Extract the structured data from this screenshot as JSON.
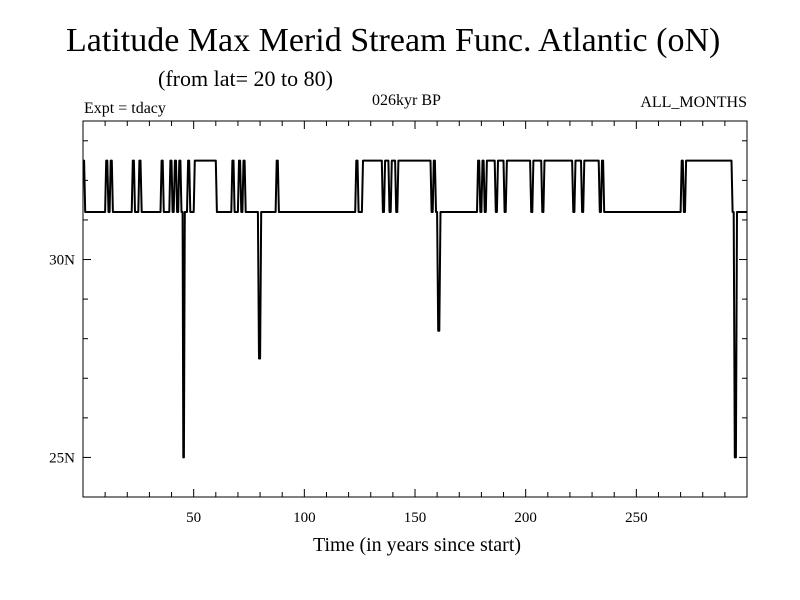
{
  "chart_data": {
    "type": "line",
    "title": "Latitude Max Merid Stream Func. Atlantic (oN)",
    "subtitle": "(from lat= 20 to 80)",
    "experiment": "Expt = tdacy",
    "period": "026kyr BP",
    "months": "ALL_MONTHS",
    "xlabel": "Time (in years since start)",
    "ylabel": "",
    "xlim": [
      0,
      300
    ],
    "ylim": [
      24,
      33.5
    ],
    "x_ticks": [
      50,
      100,
      150,
      200,
      250
    ],
    "x_tick_labels": [
      "50",
      "100",
      "150",
      "200",
      "250"
    ],
    "x_minor_step": 10,
    "y_ticks": [
      25,
      30
    ],
    "y_tick_labels": [
      "25N",
      "30N"
    ],
    "y_minor_step": 1,
    "grid": false,
    "series": [
      {
        "x": [
          0,
          0.5,
          1,
          1.5,
          10,
          10.5,
          11,
          11.5,
          12,
          12.5,
          13,
          13.5,
          22,
          22.5,
          23,
          23.5,
          25,
          25.5,
          26,
          26.5,
          35,
          35.5,
          36,
          36.5,
          39,
          39.5,
          40,
          40.5,
          41,
          41.5,
          42,
          42.5,
          43,
          43.5,
          44,
          44.5,
          45,
          45.3,
          45.6,
          46,
          46.4,
          46.8,
          47,
          47.5,
          48,
          48.5,
          50,
          50.5,
          60,
          60.5,
          62,
          62.5,
          67,
          67.5,
          68,
          68.5,
          70,
          70.5,
          71,
          71.5,
          72,
          72.5,
          73,
          73.5,
          78,
          78.5,
          79,
          79.5,
          80,
          80.5,
          81,
          81.5,
          82,
          82.5,
          87,
          87.5,
          88,
          88.5,
          123,
          123.5,
          124,
          124.5,
          126,
          126.5,
          135,
          135.5,
          136,
          136.5,
          138,
          138.5,
          139,
          139.5,
          141,
          141.5,
          142,
          142.5,
          157,
          157.5,
          158,
          158.5,
          159,
          159.5,
          160,
          160.5,
          161,
          161.5,
          177,
          177.5,
          178,
          178.5,
          179,
          179.5,
          180,
          180.5,
          181,
          181.5,
          182,
          182.5,
          186,
          186.5,
          187,
          187.5,
          190,
          190.5,
          191,
          191.5,
          202,
          202.5,
          203,
          203.5,
          207,
          207.5,
          208,
          208.5,
          221,
          221.5,
          222,
          222.5,
          225,
          225.5,
          226,
          226.5,
          233,
          233.5,
          234,
          234.5,
          235,
          235.5,
          270,
          270.5,
          271,
          271.5,
          272,
          272.5,
          293,
          293.5,
          294,
          294.5,
          295,
          295.5,
          296,
          296.5,
          300
        ],
        "y": [
          32.5,
          32.5,
          31.2,
          31.2,
          31.2,
          32.5,
          32.5,
          31.2,
          31.2,
          32.5,
          32.5,
          31.2,
          31.2,
          32.5,
          32.5,
          31.2,
          31.2,
          32.5,
          32.5,
          31.2,
          31.2,
          32.5,
          32.5,
          31.2,
          31.2,
          32.5,
          32.5,
          31.2,
          31.2,
          32.5,
          32.5,
          31.2,
          31.2,
          32.5,
          32.5,
          31.2,
          31.2,
          25.0,
          25.0,
          31.2,
          31.2,
          31.2,
          31.2,
          32.5,
          32.5,
          31.2,
          31.2,
          32.5,
          32.5,
          31.2,
          31.2,
          31.2,
          31.2,
          32.5,
          32.5,
          31.2,
          31.2,
          32.5,
          32.5,
          31.2,
          31.2,
          32.5,
          32.5,
          31.2,
          31.2,
          31.2,
          31.2,
          27.5,
          27.5,
          31.2,
          31.2,
          31.2,
          31.2,
          31.2,
          31.2,
          32.5,
          32.5,
          31.2,
          31.2,
          32.5,
          32.5,
          31.2,
          31.2,
          32.5,
          32.5,
          31.2,
          31.2,
          32.5,
          32.5,
          31.2,
          31.2,
          32.5,
          32.5,
          31.2,
          31.2,
          32.5,
          32.5,
          31.2,
          31.2,
          32.5,
          32.5,
          31.2,
          31.2,
          28.2,
          28.2,
          31.2,
          31.2,
          31.2,
          31.2,
          32.5,
          32.5,
          31.2,
          31.2,
          32.5,
          32.5,
          31.2,
          31.2,
          32.5,
          32.5,
          31.2,
          31.2,
          32.5,
          32.5,
          31.2,
          31.2,
          32.5,
          32.5,
          31.2,
          31.2,
          32.5,
          32.5,
          31.2,
          31.2,
          32.5,
          32.5,
          31.2,
          31.2,
          32.5,
          32.5,
          31.2,
          31.2,
          32.5,
          32.5,
          31.2,
          31.2,
          32.5,
          32.5,
          31.2,
          31.2,
          32.5,
          32.5,
          31.2,
          31.2,
          32.5,
          32.5,
          31.2,
          31.2,
          25.0,
          25.0,
          31.2,
          31.2,
          31.2,
          31.2
        ]
      }
    ]
  }
}
